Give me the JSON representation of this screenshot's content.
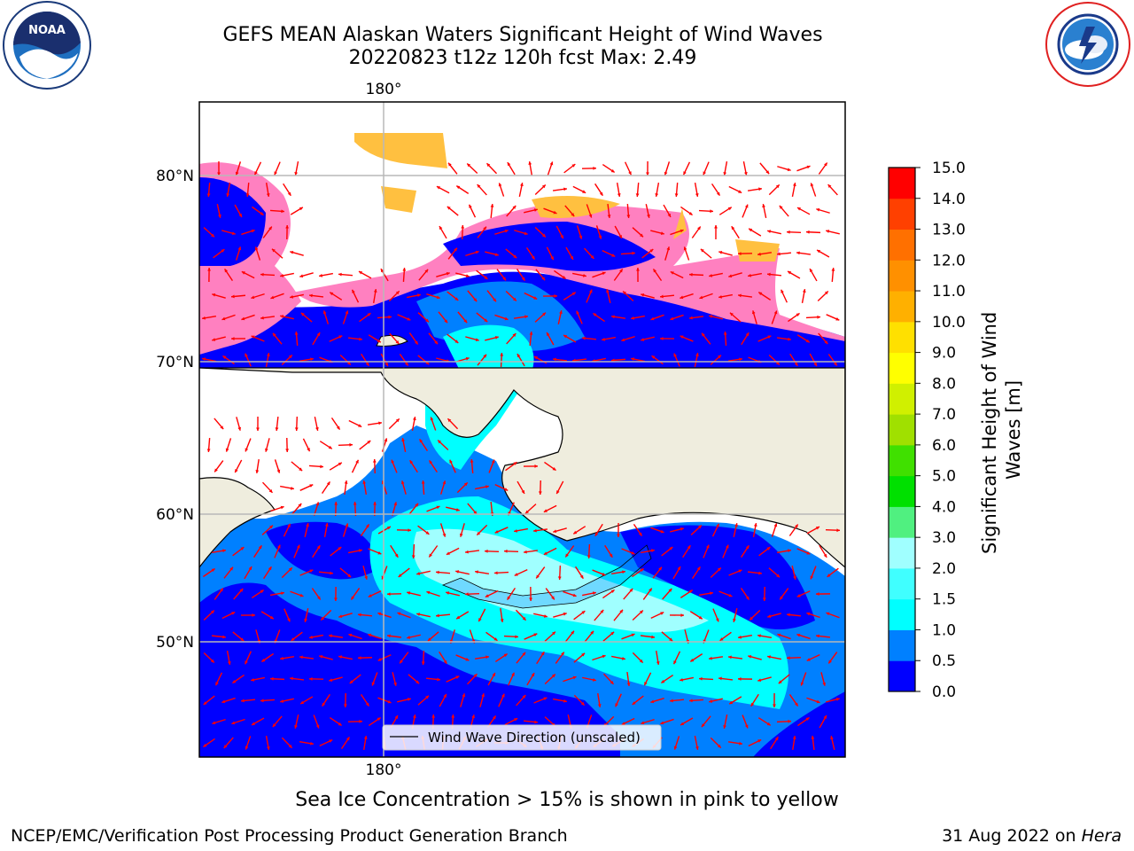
{
  "header": {
    "title_line1": "GEFS MEAN Alaskan Waters Significant Height of Wind Waves",
    "title_line2": "20220823 t12z 120h fcst   Max: 2.49"
  },
  "logos": {
    "left": "noaa-logo",
    "right": "nws-logo"
  },
  "chart_data": {
    "type": "heatmap",
    "title": "GEFS MEAN Alaskan Waters Significant Height of Wind Waves",
    "subtitle": "20220823 t12z 120h fcst   Max: 2.49",
    "max_value": 2.49,
    "lon_tick_labels": [
      "180°"
    ],
    "lat_tick_labels": [
      "80°N",
      "70°N",
      "60°N",
      "50°N"
    ],
    "grid": true,
    "legend": {
      "position": "bottom-center",
      "label": "Wind Wave Direction (unscaled)"
    },
    "arrow_color": "#ff0000",
    "land_color": "#efedde",
    "colorbar": {
      "label": "Significant Height of Wind Waves [m]",
      "label_line1": "Significant Height of Wind",
      "label_line2": "Waves [m]",
      "ticks": [
        "0.0",
        "0.5",
        "1.0",
        "1.5",
        "2.0",
        "3.0",
        "4.0",
        "5.0",
        "6.0",
        "7.0",
        "8.0",
        "9.0",
        "10.0",
        "11.0",
        "12.0",
        "13.0",
        "14.0",
        "15.0"
      ],
      "colors": [
        "#0000ff",
        "#0080ff",
        "#00ffff",
        "#40ffff",
        "#a0ffff",
        "#50f080",
        "#00e000",
        "#40e000",
        "#a0e000",
        "#d0f000",
        "#ffff00",
        "#ffe000",
        "#ffb000",
        "#ff9000",
        "#ff7000",
        "#ff4000",
        "#ff0000"
      ]
    },
    "ice_colors": [
      "#ff00ff",
      "#ff80c0",
      "#ffc040",
      "#ffff40"
    ]
  },
  "footer": {
    "ice_note": "Sea Ice Concentration > 15% is shown in pink to yellow",
    "credit": "NCEP/EMC/Verification Post Processing Product Generation Branch",
    "date": "31 Aug 2022 on",
    "machine": "Hera"
  }
}
